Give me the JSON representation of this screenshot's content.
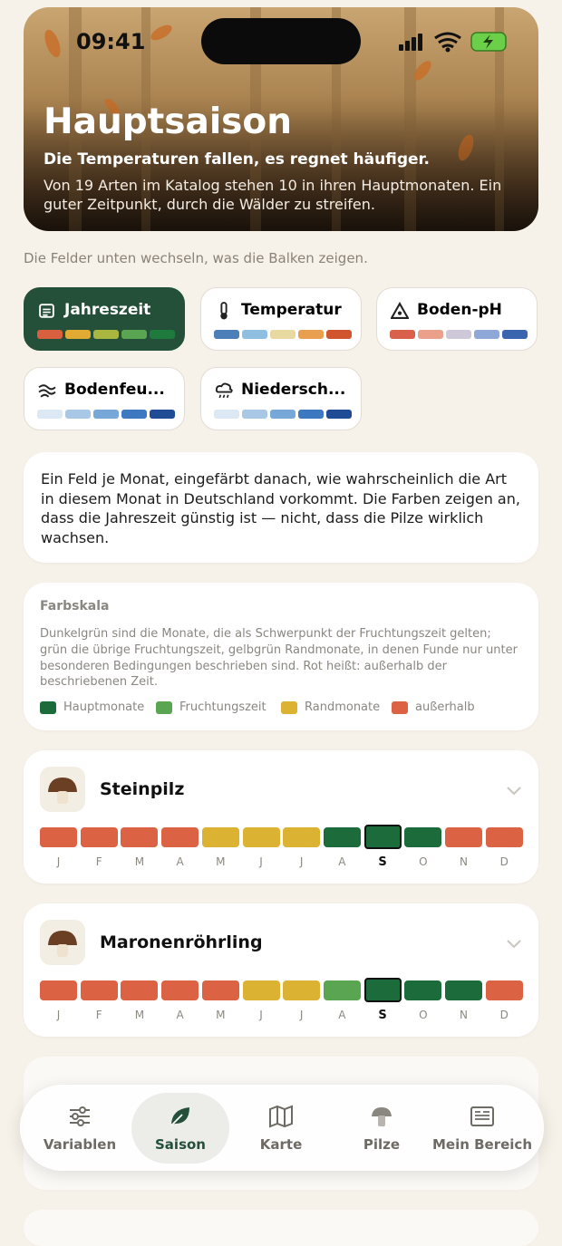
{
  "status": {
    "time": "09:41"
  },
  "hero": {
    "title": "Hauptsaison",
    "subtitle": "Die Temperaturen fallen, es regnet häufiger.",
    "text": "Von 19 Arten im Katalog stehen 10 in ihren Hauptmonaten. Ein guter Zeitpunkt, durch die Wälder zu streifen."
  },
  "hint": "Die Felder unten wechseln, was die Balken zeigen.",
  "modes": [
    {
      "label": "Jahreszeit",
      "selected": true,
      "colors": [
        "#d9603f",
        "#e0aa33",
        "#a9b740",
        "#5aa552",
        "#1f7a3d"
      ]
    },
    {
      "label": "Temperatur",
      "selected": false,
      "colors": [
        "#4c7fb8",
        "#8fbfe0",
        "#e8d9a0",
        "#e8a050",
        "#d0552f"
      ]
    },
    {
      "label": "Boden-pH",
      "selected": false,
      "colors": [
        "#d9604a",
        "#eaa08a",
        "#cfc8d8",
        "#8ea8d8",
        "#3a66b0"
      ]
    },
    {
      "label": "Bodenfeu...",
      "selected": false,
      "colors": [
        "#dce8f4",
        "#a9c8e6",
        "#78a8d8",
        "#3e78c0",
        "#1f4c94"
      ]
    },
    {
      "label": "Niedersch...",
      "selected": false,
      "colors": [
        "#dce8f4",
        "#a9c8e6",
        "#78a8d8",
        "#3e78c0",
        "#1f4c94"
      ]
    }
  ],
  "description": "Ein Feld je Monat, eingefärbt danach, wie wahrscheinlich die Art in diesem Monat in Deutschland vorkommt. Die Farben zeigen an, dass die Jahreszeit günstig ist — nicht, dass die Pilze wirklich wachsen.",
  "legend": {
    "title": "Farbskala",
    "text": "Dunkelgrün sind die Monate, die als Schwerpunkt der Fruchtungszeit gelten; grün die übrige Fruchtungszeit, gelbgrün Randmonate, in denen Funde nur unter besonderen Bedingungen beschrieben sind. Rot heißt: außerhalb der beschriebenen Zeit.",
    "items": [
      {
        "label": "Hauptmonate",
        "color": "#1c6b3a"
      },
      {
        "label": "Fruchtungszeit",
        "color": "#5aa552"
      },
      {
        "label": "Randmonate",
        "color": "#dcb232"
      },
      {
        "label": "außerhalb",
        "color": "#dc6244"
      }
    ]
  },
  "months": [
    "J",
    "F",
    "M",
    "A",
    "M",
    "J",
    "J",
    "A",
    "S",
    "O",
    "N",
    "D"
  ],
  "current_month": 8,
  "species": [
    {
      "name": "Steinpilz",
      "colors": [
        "#dc6244",
        "#dc6244",
        "#dc6244",
        "#dc6244",
        "#dcb232",
        "#dcb232",
        "#dcb232",
        "#1c6b3a",
        "#1c6b3a",
        "#1c6b3a",
        "#dc6244",
        "#dc6244"
      ]
    },
    {
      "name": "Maronenröhrling",
      "colors": [
        "#dc6244",
        "#dc6244",
        "#dc6244",
        "#dc6244",
        "#dc6244",
        "#dcb232",
        "#dcb232",
        "#5aa552",
        "#1c6b3a",
        "#1c6b3a",
        "#1c6b3a",
        "#dc6244"
      ]
    }
  ],
  "tabs": [
    {
      "label": "Variablen",
      "selected": false
    },
    {
      "label": "Saison",
      "selected": true
    },
    {
      "label": "Karte",
      "selected": false
    },
    {
      "label": "Pilze",
      "selected": false
    },
    {
      "label": "Mein Bereich",
      "selected": false
    }
  ]
}
